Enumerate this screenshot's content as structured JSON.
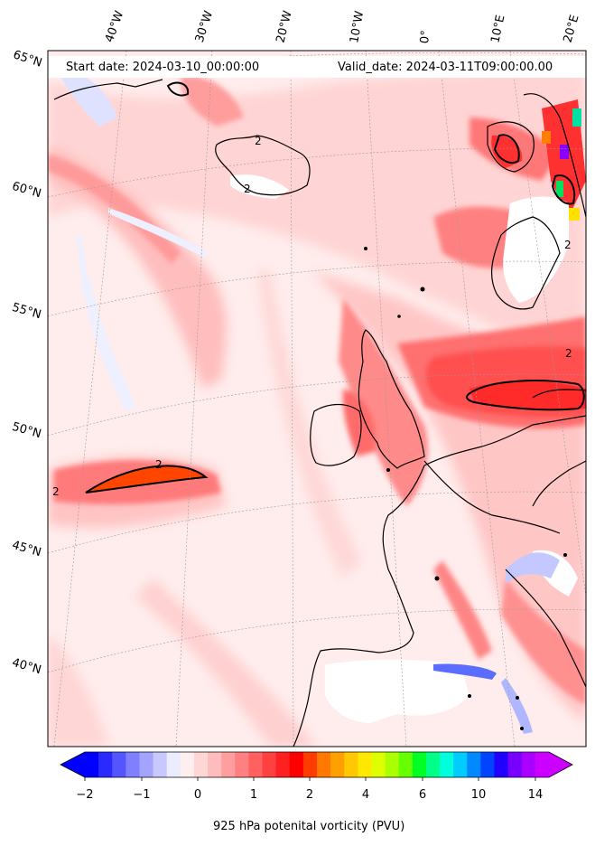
{
  "header": {
    "start_date": "Start date: 2024-03-10_00:00:00",
    "valid_date": "Valid_date: 2024-03-11T09:00:00.00"
  },
  "longitude_labels": [
    "40°W",
    "30°W",
    "20°W",
    "10°W",
    "0°",
    "10°E",
    "20°E"
  ],
  "latitude_labels": [
    "65°N",
    "60°N",
    "55°N",
    "50°N",
    "45°N",
    "40°N"
  ],
  "contour_labels": [
    "2",
    "2",
    "2",
    "2",
    "2",
    "2"
  ],
  "colorbar": {
    "title": "925 hPa potenital vorticity (PVU)",
    "tick_labels": [
      "−2",
      "−1",
      "0",
      "1",
      "2",
      "4",
      "6",
      "10",
      "14"
    ],
    "colors": [
      "#0000ff",
      "#2a2aff",
      "#5555ff",
      "#7f7fff",
      "#a4a4ff",
      "#c8c8ff",
      "#ececff",
      "#ffeeee",
      "#ffd6d6",
      "#ffbcbc",
      "#ff9e9e",
      "#ff8080",
      "#ff6060",
      "#ff4040",
      "#ff2020",
      "#ff0000",
      "#ff3c00",
      "#ff7800",
      "#ffa000",
      "#ffc800",
      "#ffe800",
      "#ddff00",
      "#aaff00",
      "#66ff00",
      "#00ff22",
      "#00ff88",
      "#00ffdd",
      "#00ccff",
      "#0088ff",
      "#0044ff",
      "#2200ff",
      "#7700ff",
      "#aa00ff",
      "#cc00ff"
    ]
  },
  "colors": {
    "background_low": "#ffecec",
    "pv_light": "#ffc9c9",
    "pv_mid": "#ff9a9a",
    "pv_high": "#ff4a4a",
    "pv_max": "#ff3a00",
    "negative": "#e6e8ff",
    "land_outline": "#000000"
  }
}
